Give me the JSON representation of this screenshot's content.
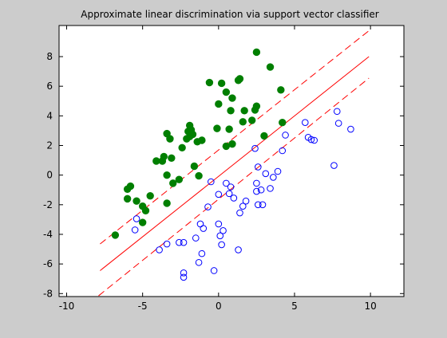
{
  "chart_data": {
    "type": "scatter",
    "title": "Approximate linear discrimination via support vector classifier",
    "xlabel": "",
    "ylabel": "",
    "xlim": [
      -10.5,
      12.2
    ],
    "ylim": [
      -8.2,
      10.1
    ],
    "xticks": [
      -10,
      -5,
      0,
      5,
      10
    ],
    "yticks": [
      -8,
      -6,
      -4,
      -2,
      0,
      2,
      4,
      6,
      8
    ],
    "grid": false,
    "series": [
      {
        "marker": "filled-circle",
        "color": "#007f00",
        "points": [
          [
            -6.8,
            -4.05
          ],
          [
            -6.0,
            -0.95
          ],
          [
            -5.8,
            -0.75
          ],
          [
            -6.0,
            -1.6
          ],
          [
            -5.4,
            -1.75
          ],
          [
            -5.0,
            -2.1
          ],
          [
            -4.8,
            -2.4
          ],
          [
            -5.0,
            -3.2
          ],
          [
            -4.5,
            -1.4
          ],
          [
            -4.1,
            0.95
          ],
          [
            -3.7,
            0.95
          ],
          [
            -3.6,
            1.25
          ],
          [
            -3.4,
            -1.9
          ],
          [
            -3.4,
            0.0
          ],
          [
            -3.4,
            2.8
          ],
          [
            -3.2,
            2.45
          ],
          [
            -3.1,
            1.15
          ],
          [
            -3.0,
            -0.55
          ],
          [
            -2.6,
            -0.3
          ],
          [
            -2.4,
            1.85
          ],
          [
            -2.1,
            2.45
          ],
          [
            -2.0,
            2.95
          ],
          [
            -1.9,
            2.6
          ],
          [
            -1.9,
            3.35
          ],
          [
            -1.8,
            3.05
          ],
          [
            -1.7,
            2.75
          ],
          [
            -1.6,
            0.6
          ],
          [
            -1.4,
            2.25
          ],
          [
            -1.3,
            -0.05
          ],
          [
            -1.1,
            2.35
          ],
          [
            -0.6,
            6.25
          ],
          [
            -0.1,
            3.15
          ],
          [
            0.0,
            4.8
          ],
          [
            0.2,
            6.2
          ],
          [
            0.5,
            5.6
          ],
          [
            0.5,
            1.95
          ],
          [
            0.7,
            3.1
          ],
          [
            0.8,
            4.35
          ],
          [
            0.9,
            5.2
          ],
          [
            0.9,
            2.1
          ],
          [
            1.3,
            6.4
          ],
          [
            1.4,
            6.5
          ],
          [
            1.6,
            3.6
          ],
          [
            1.7,
            4.35
          ],
          [
            2.2,
            3.7
          ],
          [
            2.4,
            4.4
          ],
          [
            2.5,
            4.65
          ],
          [
            2.5,
            8.3
          ],
          [
            3.0,
            2.65
          ],
          [
            3.4,
            7.3
          ],
          [
            4.1,
            5.75
          ],
          [
            4.2,
            3.55
          ]
        ]
      },
      {
        "marker": "open-circle",
        "color": "#0000ff",
        "points": [
          [
            -5.5,
            -3.7
          ],
          [
            -5.4,
            -2.95
          ],
          [
            -3.9,
            -5.05
          ],
          [
            -3.4,
            -4.65
          ],
          [
            -2.6,
            -4.55
          ],
          [
            -2.3,
            -4.55
          ],
          [
            -2.3,
            -6.6
          ],
          [
            -2.3,
            -6.9
          ],
          [
            -1.5,
            -4.25
          ],
          [
            -1.3,
            -5.9
          ],
          [
            -1.2,
            -3.3
          ],
          [
            -1.1,
            -5.3
          ],
          [
            -1.0,
            -3.6
          ],
          [
            -0.7,
            -2.15
          ],
          [
            -0.5,
            -0.45
          ],
          [
            -0.3,
            -6.45
          ],
          [
            0.0,
            -3.3
          ],
          [
            0.0,
            -1.3
          ],
          [
            0.1,
            -4.1
          ],
          [
            0.2,
            -4.7
          ],
          [
            0.3,
            -3.75
          ],
          [
            0.5,
            -0.55
          ],
          [
            0.7,
            -1.25
          ],
          [
            0.8,
            -0.8
          ],
          [
            1.0,
            -1.55
          ],
          [
            1.3,
            -5.05
          ],
          [
            1.4,
            -2.55
          ],
          [
            1.6,
            -2.1
          ],
          [
            1.8,
            -1.75
          ],
          [
            2.4,
            1.8
          ],
          [
            2.5,
            -1.1
          ],
          [
            2.5,
            -0.55
          ],
          [
            2.6,
            -2.0
          ],
          [
            2.6,
            0.55
          ],
          [
            2.8,
            -1.0
          ],
          [
            2.9,
            -2.0
          ],
          [
            3.1,
            0.1
          ],
          [
            3.4,
            -0.9
          ],
          [
            3.6,
            -0.15
          ],
          [
            3.9,
            0.25
          ],
          [
            4.2,
            1.65
          ],
          [
            4.4,
            2.7
          ],
          [
            5.7,
            3.55
          ],
          [
            5.9,
            2.55
          ],
          [
            6.1,
            2.4
          ],
          [
            6.3,
            2.35
          ],
          [
            7.6,
            0.65
          ],
          [
            7.8,
            4.3
          ],
          [
            7.9,
            3.5
          ],
          [
            8.7,
            3.1
          ]
        ]
      }
    ],
    "lines": [
      {
        "style": "solid",
        "color": "#ff0000",
        "from": [
          -7.8,
          -6.45
        ],
        "to": [
          9.9,
          8.0
        ]
      },
      {
        "style": "dashed",
        "color": "#ff0000",
        "from": [
          -7.8,
          -4.65
        ],
        "to": [
          9.9,
          9.75
        ]
      },
      {
        "style": "dashed",
        "color": "#ff0000",
        "from": [
          -7.9,
          -8.15
        ],
        "to": [
          9.9,
          6.55
        ]
      }
    ]
  }
}
